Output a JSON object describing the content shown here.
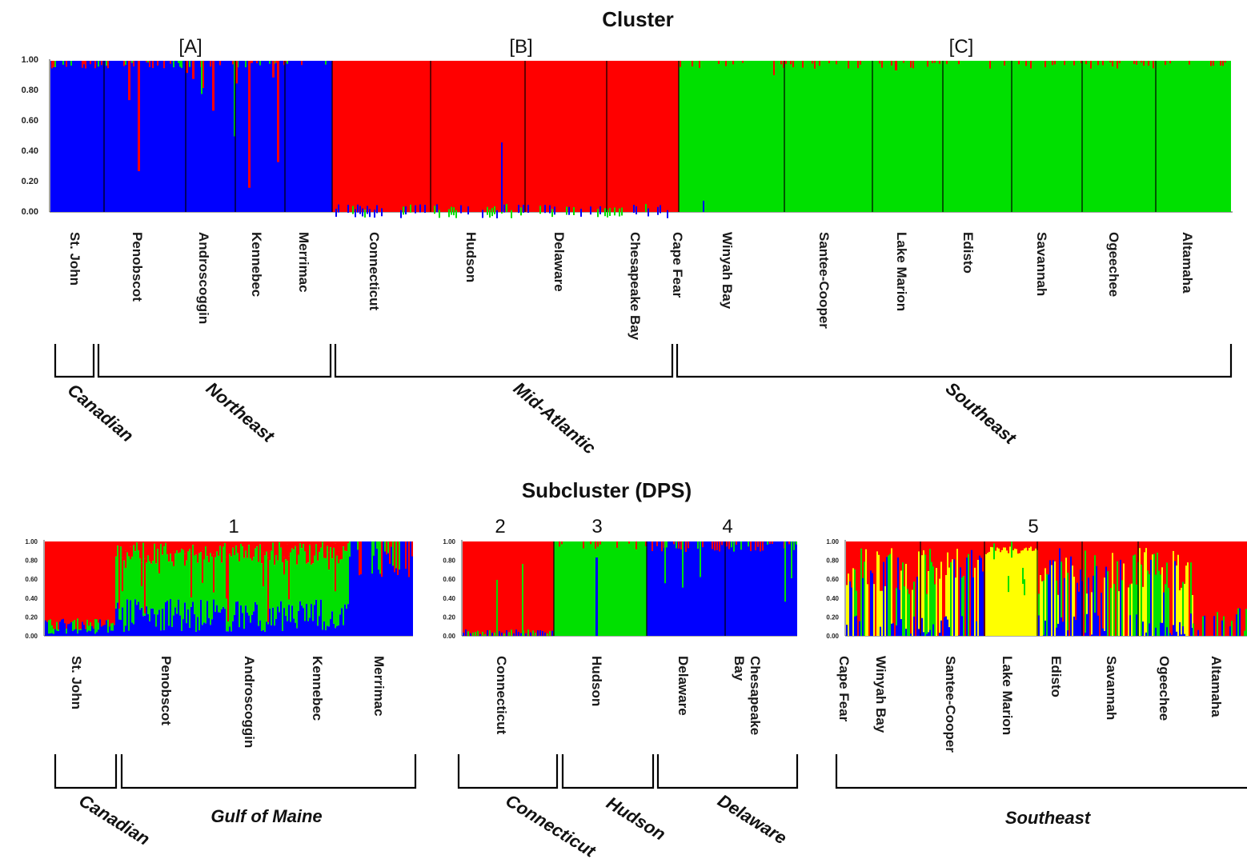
{
  "colors": {
    "blue": "#0000ff",
    "red": "#ff0000",
    "green": "#00e000",
    "yellow": "#ffff00"
  },
  "top": {
    "title": "Cluster",
    "groups": [
      "[A]",
      "[B]",
      "[C]"
    ],
    "regions": [
      "Canadian",
      "Northeast",
      "Mid-Atlantic",
      "Southeast"
    ]
  },
  "bottom": {
    "title": "Subcluster (DPS)",
    "groups": [
      "1",
      "2",
      "3",
      "4",
      "5"
    ],
    "regions": [
      "Canadian",
      "Gulf of Maine",
      "Connecticut",
      "Hudson",
      "Delaware",
      "Southeast"
    ]
  },
  "chart_data": [
    {
      "type": "bar",
      "title": "Cluster",
      "ylim": [
        0,
        1
      ],
      "yticks": [
        "0.00",
        "0.20",
        "0.40",
        "0.60",
        "0.80",
        "1.00"
      ],
      "populations": [
        "St. John",
        "Penobscot",
        "Androscoggin",
        "Kennebec",
        "Merrimac",
        "Connecticut",
        "Hudson",
        "Delaware",
        "Chesapeake Bay",
        "Cape Fear",
        "Winyah Bay",
        "Santee-Cooper",
        "Lake Marion",
        "Edisto",
        "Savannah",
        "Ogeechee",
        "Altamaha"
      ],
      "cluster_labels": [
        "[A]",
        "[B]",
        "[C]"
      ],
      "dominant_cluster": [
        "blue",
        "blue",
        "blue",
        "blue",
        "blue",
        "red",
        "red",
        "red",
        "red",
        "green",
        "green",
        "green",
        "green",
        "green",
        "green",
        "green",
        "green"
      ],
      "regions": [
        "Canadian",
        "Northeast",
        "Mid-Atlantic",
        "Southeast"
      ]
    },
    {
      "type": "bar",
      "title": "Subcluster (DPS)",
      "ylim": [
        0,
        1
      ],
      "yticks": [
        "0.00",
        "0.20",
        "0.40",
        "0.60",
        "0.80",
        "1.00"
      ],
      "panels": [
        {
          "label": "1",
          "populations": [
            "St. John",
            "Penobscot",
            "Androscoggin",
            "Kennebec",
            "Merrimac"
          ],
          "regions": [
            "Canadian",
            "Gulf of Maine"
          ]
        },
        {
          "label": "2",
          "populations": [
            "Connecticut"
          ],
          "regions": [
            "Connecticut"
          ]
        },
        {
          "label": "3",
          "populations": [
            "Hudson"
          ],
          "regions": [
            "Hudson"
          ]
        },
        {
          "label": "4",
          "populations": [
            "Delaware",
            "Chesapeake Bay"
          ],
          "regions": [
            "Delaware"
          ]
        },
        {
          "label": "5",
          "populations": [
            "Cape Fear",
            "Winyah Bay",
            "Santee-Cooper",
            "Lake Marion",
            "Edisto",
            "Savannah",
            "Ogeechee",
            "Altamaha"
          ],
          "regions": [
            "Southeast"
          ]
        }
      ]
    }
  ]
}
